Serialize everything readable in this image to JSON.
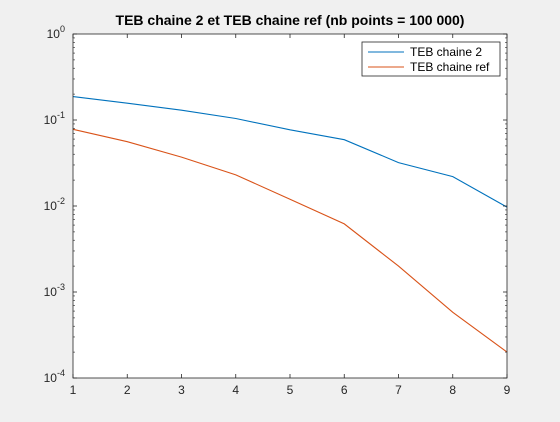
{
  "chart_data": {
    "type": "line",
    "title": "TEB chaine 2 et TEB chaine ref (nb points = 100 000)",
    "xlabel": "",
    "ylabel": "",
    "x": [
      1,
      2,
      3,
      4,
      5,
      6,
      7,
      8,
      9
    ],
    "xlim": [
      1,
      9
    ],
    "xticks": [
      "1",
      "2",
      "3",
      "4",
      "5",
      "6",
      "7",
      "8",
      "9"
    ],
    "y_scale": "log",
    "ylim": [
      0.0001,
      1
    ],
    "yticks": [
      {
        "base": "10",
        "exp": "0",
        "value": 1
      },
      {
        "base": "10",
        "exp": "-1",
        "value": 0.1
      },
      {
        "base": "10",
        "exp": "-2",
        "value": 0.01
      },
      {
        "base": "10",
        "exp": "-3",
        "value": 0.001
      },
      {
        "base": "10",
        "exp": "-4",
        "value": 0.0001
      }
    ],
    "grid": false,
    "legend_position": "top-right",
    "series": [
      {
        "name": "TEB chaine 2",
        "color": "#0072BD",
        "values": [
          0.187,
          0.157,
          0.13,
          0.104,
          0.077,
          0.059,
          0.032,
          0.022,
          0.0097
        ]
      },
      {
        "name": "TEB chaine ref",
        "color": "#D95319",
        "values": [
          0.078,
          0.056,
          0.037,
          0.023,
          0.012,
          0.0062,
          0.002,
          0.00058,
          0.0002
        ]
      }
    ]
  }
}
